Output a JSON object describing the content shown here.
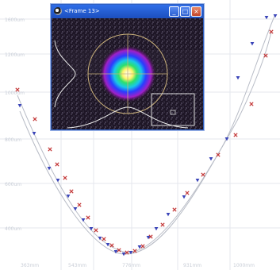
{
  "window": {
    "title": "<Frame 13>",
    "buttons": {
      "minimize": "_",
      "maximize": "□",
      "close": "×"
    }
  },
  "colors": {
    "series_red": "#c43a3a",
    "series_blue": "#3a44b8",
    "grid": "#e4e7ee",
    "roi_outline": "#c9b07a"
  },
  "chart_data": {
    "type": "scatter",
    "x_ticks": [
      "363mm",
      "543mm",
      "776mm",
      "931mm",
      "1000mm"
    ],
    "y_ticks": [
      "1600um",
      "1200um",
      "1000um",
      "800um",
      "600um",
      "400um"
    ],
    "series": [
      {
        "marker": "x",
        "points": [
          [
            22,
            113
          ],
          [
            44,
            150
          ],
          [
            63,
            188
          ],
          [
            72,
            207
          ],
          [
            82,
            224
          ],
          [
            90,
            241
          ],
          [
            100,
            258
          ],
          [
            111,
            274
          ],
          [
            121,
            290
          ],
          [
            131,
            301
          ],
          [
            141,
            309
          ],
          [
            150,
            315
          ],
          [
            160,
            318
          ],
          [
            170,
            316
          ],
          [
            180,
            310
          ],
          [
            190,
            298
          ],
          [
            205,
            283
          ],
          [
            220,
            264
          ],
          [
            236,
            243
          ],
          [
            256,
            220
          ],
          [
            275,
            195
          ],
          [
            297,
            170
          ],
          [
            317,
            131
          ],
          [
            335,
            70
          ],
          [
            342,
            40
          ]
        ]
      },
      {
        "marker": "triangle",
        "points": [
          [
            25,
            133
          ],
          [
            43,
            168
          ],
          [
            62,
            212
          ],
          [
            73,
            227
          ],
          [
            86,
            247
          ],
          [
            95,
            263
          ],
          [
            105,
            277
          ],
          [
            115,
            288
          ],
          [
            126,
            300
          ],
          [
            136,
            308
          ],
          [
            146,
            317
          ],
          [
            156,
            320
          ],
          [
            165,
            318
          ],
          [
            176,
            311
          ],
          [
            187,
            299
          ],
          [
            197,
            288
          ],
          [
            212,
            270
          ],
          [
            232,
            248
          ],
          [
            249,
            227
          ],
          [
            266,
            200
          ],
          [
            286,
            175
          ],
          [
            300,
            98
          ],
          [
            318,
            55
          ],
          [
            336,
            22
          ],
          [
            347,
            20
          ]
        ]
      }
    ]
  }
}
